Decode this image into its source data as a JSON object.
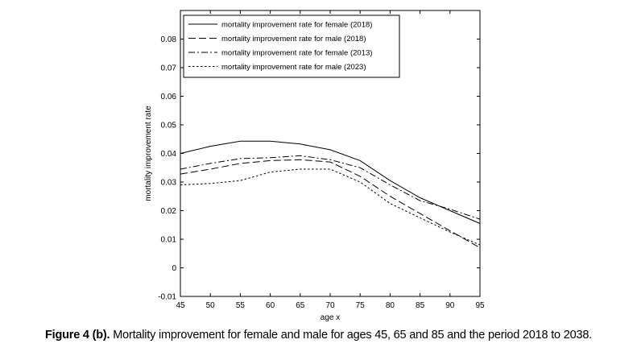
{
  "caption": {
    "label": "Figure 4 (b).",
    "text": "Mortality improvement for female and male for ages 45, 65 and 85 and the period 2018 to 2038."
  },
  "chart_data": {
    "type": "line",
    "title": "",
    "xlabel": "age x",
    "ylabel": "mortality improvement rate",
    "xlim": [
      45,
      95
    ],
    "ylim": [
      -0.01,
      0.09
    ],
    "x_ticks": [
      "45",
      "50",
      "55",
      "60",
      "65",
      "70",
      "75",
      "80",
      "85",
      "90",
      "95"
    ],
    "y_ticks": [
      "-0.01",
      "0",
      "0.01",
      "0.02",
      "0.03",
      "0.04",
      "0.05",
      "0.06",
      "0.07",
      "0.08"
    ],
    "legend_position": "top",
    "x": [
      45,
      50,
      55,
      60,
      65,
      70,
      75,
      80,
      85,
      90,
      95
    ],
    "series": [
      {
        "name": "mortality improvement rate for female (2018)",
        "style": "solid",
        "values": [
          0.04,
          0.0425,
          0.0443,
          0.0443,
          0.0433,
          0.0413,
          0.0375,
          0.0305,
          0.0245,
          0.02,
          0.0155
        ]
      },
      {
        "name": "mortality improvement rate for male (2018)",
        "style": "dashed",
        "values": [
          0.0328,
          0.0345,
          0.0365,
          0.0375,
          0.0378,
          0.037,
          0.032,
          0.025,
          0.019,
          0.013,
          0.007
        ]
      },
      {
        "name": "mortality improvement rate for female (2013)",
        "style": "dashdot",
        "values": [
          0.0345,
          0.0365,
          0.0382,
          0.0385,
          0.0392,
          0.0378,
          0.035,
          0.029,
          0.0235,
          0.0205,
          0.017
        ]
      },
      {
        "name": "mortality improvement rate for male (2023)",
        "style": "dotted",
        "values": [
          0.029,
          0.0295,
          0.0305,
          0.0335,
          0.0345,
          0.0345,
          0.03,
          0.0225,
          0.0175,
          0.0125,
          0.008
        ]
      }
    ]
  }
}
